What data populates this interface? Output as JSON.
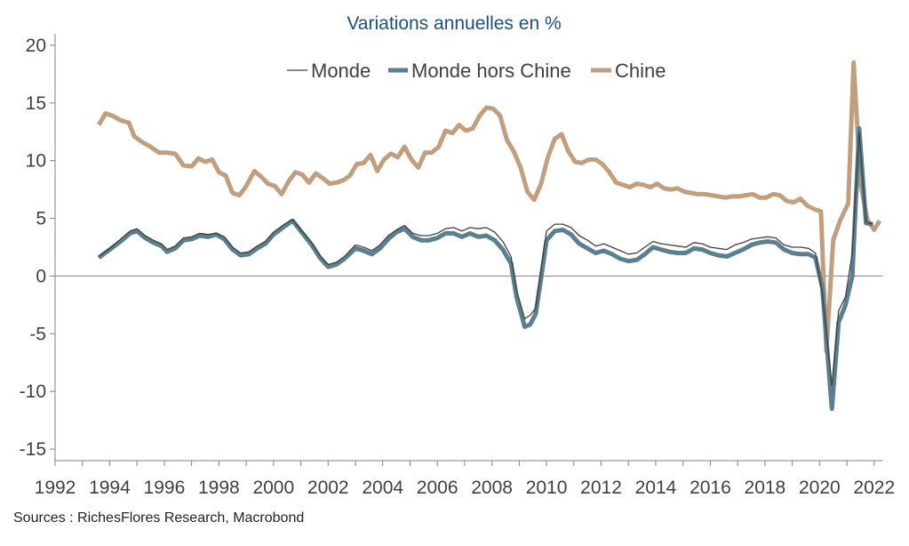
{
  "chart_data": {
    "type": "line",
    "title": "Variations annuelles en %",
    "xlabel": "",
    "ylabel": "",
    "xlim": [
      1992,
      2022.3
    ],
    "ylim": [
      -16,
      21
    ],
    "x_ticks": [
      "1992",
      "1994",
      "1996",
      "1998",
      "2000",
      "2002",
      "2004",
      "2006",
      "2008",
      "2010",
      "2012",
      "2014",
      "2016",
      "2018",
      "2020",
      "2022"
    ],
    "y_ticks": [
      "20",
      "15",
      "10",
      "5",
      "0",
      "-5",
      "-10",
      "-15"
    ],
    "legend_position": "top",
    "grid": false,
    "series": [
      {
        "name": "Monde",
        "color": "#404040",
        "points": [
          [
            1993.6,
            1.7
          ],
          [
            1994.0,
            2.4
          ],
          [
            1994.4,
            3.2
          ],
          [
            1994.75,
            3.9
          ],
          [
            1995.0,
            4.1
          ],
          [
            1995.3,
            3.5
          ],
          [
            1995.6,
            3.1
          ],
          [
            1995.9,
            2.8
          ],
          [
            1996.1,
            2.3
          ],
          [
            1996.4,
            2.6
          ],
          [
            1996.7,
            3.3
          ],
          [
            1997.0,
            3.4
          ],
          [
            1997.3,
            3.7
          ],
          [
            1997.6,
            3.6
          ],
          [
            1997.9,
            3.7
          ],
          [
            1998.2,
            3.4
          ],
          [
            1998.5,
            2.5
          ],
          [
            1998.8,
            2.0
          ],
          [
            1999.1,
            2.1
          ],
          [
            1999.4,
            2.6
          ],
          [
            1999.7,
            3.0
          ],
          [
            2000.0,
            3.8
          ],
          [
            2000.4,
            4.5
          ],
          [
            2000.7,
            4.9
          ],
          [
            2001.0,
            4.0
          ],
          [
            2001.4,
            2.9
          ],
          [
            2001.7,
            1.8
          ],
          [
            2002.0,
            1.0
          ],
          [
            2002.3,
            1.2
          ],
          [
            2002.6,
            1.7
          ],
          [
            2003.0,
            2.7
          ],
          [
            2003.3,
            2.5
          ],
          [
            2003.6,
            2.2
          ],
          [
            2003.9,
            2.7
          ],
          [
            2004.2,
            3.5
          ],
          [
            2004.5,
            4.0
          ],
          [
            2004.8,
            4.4
          ],
          [
            2005.1,
            3.7
          ],
          [
            2005.4,
            3.5
          ],
          [
            2005.7,
            3.5
          ],
          [
            2006.0,
            3.7
          ],
          [
            2006.3,
            4.1
          ],
          [
            2006.6,
            4.2
          ],
          [
            2006.9,
            3.9
          ],
          [
            2007.2,
            4.2
          ],
          [
            2007.5,
            4.1
          ],
          [
            2007.8,
            4.2
          ],
          [
            2008.1,
            3.8
          ],
          [
            2008.4,
            3.0
          ],
          [
            2008.7,
            1.7
          ],
          [
            2008.9,
            -1.2
          ],
          [
            2009.2,
            -3.7
          ],
          [
            2009.4,
            -3.4
          ],
          [
            2009.6,
            -2.8
          ],
          [
            2009.8,
            0.6
          ],
          [
            2010.0,
            3.9
          ],
          [
            2010.3,
            4.5
          ],
          [
            2010.6,
            4.5
          ],
          [
            2010.9,
            4.2
          ],
          [
            2011.2,
            3.5
          ],
          [
            2011.5,
            3.1
          ],
          [
            2011.8,
            2.6
          ],
          [
            2012.1,
            2.8
          ],
          [
            2012.4,
            2.5
          ],
          [
            2012.7,
            2.2
          ],
          [
            2013.0,
            1.9
          ],
          [
            2013.3,
            2.0
          ],
          [
            2013.6,
            2.5
          ],
          [
            2013.9,
            3.0
          ],
          [
            2014.2,
            2.8
          ],
          [
            2014.5,
            2.7
          ],
          [
            2014.8,
            2.6
          ],
          [
            2015.1,
            2.5
          ],
          [
            2015.4,
            2.9
          ],
          [
            2015.7,
            2.8
          ],
          [
            2016.0,
            2.5
          ],
          [
            2016.3,
            2.4
          ],
          [
            2016.6,
            2.3
          ],
          [
            2016.9,
            2.7
          ],
          [
            2017.2,
            2.9
          ],
          [
            2017.5,
            3.2
          ],
          [
            2017.8,
            3.3
          ],
          [
            2018.1,
            3.4
          ],
          [
            2018.4,
            3.3
          ],
          [
            2018.7,
            2.7
          ],
          [
            2019.0,
            2.5
          ],
          [
            2019.3,
            2.5
          ],
          [
            2019.6,
            2.4
          ],
          [
            2019.85,
            2.0
          ],
          [
            2020.1,
            -1.5
          ],
          [
            2020.45,
            -9.5
          ],
          [
            2020.7,
            -3.0
          ],
          [
            2020.95,
            -1.8
          ],
          [
            2021.2,
            2.0
          ],
          [
            2021.45,
            12.5
          ],
          [
            2021.7,
            4.7
          ],
          [
            2021.95,
            4.5
          ]
        ]
      },
      {
        "name": "Monde hors Chine",
        "color": "#5a7f8e",
        "points": [
          [
            1993.6,
            1.6
          ],
          [
            1994.0,
            2.3
          ],
          [
            1994.4,
            3.0
          ],
          [
            1994.75,
            3.7
          ],
          [
            1995.0,
            3.9
          ],
          [
            1995.3,
            3.3
          ],
          [
            1995.6,
            2.9
          ],
          [
            1995.9,
            2.6
          ],
          [
            1996.1,
            2.1
          ],
          [
            1996.4,
            2.4
          ],
          [
            1996.7,
            3.1
          ],
          [
            1997.0,
            3.2
          ],
          [
            1997.3,
            3.5
          ],
          [
            1997.6,
            3.4
          ],
          [
            1997.9,
            3.6
          ],
          [
            1998.2,
            3.2
          ],
          [
            1998.5,
            2.3
          ],
          [
            1998.8,
            1.8
          ],
          [
            1999.1,
            1.9
          ],
          [
            1999.4,
            2.4
          ],
          [
            1999.7,
            2.8
          ],
          [
            2000.0,
            3.6
          ],
          [
            2000.4,
            4.3
          ],
          [
            2000.7,
            4.8
          ],
          [
            2001.0,
            3.9
          ],
          [
            2001.4,
            2.7
          ],
          [
            2001.7,
            1.6
          ],
          [
            2002.0,
            0.8
          ],
          [
            2002.3,
            1.0
          ],
          [
            2002.6,
            1.5
          ],
          [
            2003.0,
            2.4
          ],
          [
            2003.3,
            2.2
          ],
          [
            2003.6,
            1.9
          ],
          [
            2003.9,
            2.4
          ],
          [
            2004.2,
            3.2
          ],
          [
            2004.5,
            3.8
          ],
          [
            2004.8,
            4.1
          ],
          [
            2005.1,
            3.4
          ],
          [
            2005.4,
            3.1
          ],
          [
            2005.7,
            3.1
          ],
          [
            2006.0,
            3.3
          ],
          [
            2006.3,
            3.7
          ],
          [
            2006.6,
            3.7
          ],
          [
            2006.9,
            3.4
          ],
          [
            2007.2,
            3.7
          ],
          [
            2007.5,
            3.4
          ],
          [
            2007.8,
            3.5
          ],
          [
            2008.1,
            3.1
          ],
          [
            2008.4,
            2.3
          ],
          [
            2008.7,
            1.1
          ],
          [
            2008.9,
            -1.8
          ],
          [
            2009.2,
            -4.4
          ],
          [
            2009.4,
            -4.2
          ],
          [
            2009.6,
            -3.3
          ],
          [
            2009.8,
            -0.2
          ],
          [
            2010.0,
            3.1
          ],
          [
            2010.3,
            3.9
          ],
          [
            2010.6,
            4.0
          ],
          [
            2010.9,
            3.6
          ],
          [
            2011.2,
            2.8
          ],
          [
            2011.5,
            2.4
          ],
          [
            2011.8,
            2.0
          ],
          [
            2012.1,
            2.2
          ],
          [
            2012.4,
            1.9
          ],
          [
            2012.7,
            1.5
          ],
          [
            2013.0,
            1.3
          ],
          [
            2013.3,
            1.4
          ],
          [
            2013.6,
            1.9
          ],
          [
            2013.9,
            2.5
          ],
          [
            2014.2,
            2.3
          ],
          [
            2014.5,
            2.1
          ],
          [
            2014.8,
            2.0
          ],
          [
            2015.1,
            2.0
          ],
          [
            2015.4,
            2.4
          ],
          [
            2015.7,
            2.3
          ],
          [
            2016.0,
            2.0
          ],
          [
            2016.3,
            1.8
          ],
          [
            2016.6,
            1.7
          ],
          [
            2016.9,
            2.0
          ],
          [
            2017.2,
            2.3
          ],
          [
            2017.5,
            2.7
          ],
          [
            2017.8,
            2.9
          ],
          [
            2018.1,
            3.0
          ],
          [
            2018.4,
            2.9
          ],
          [
            2018.7,
            2.3
          ],
          [
            2019.0,
            2.0
          ],
          [
            2019.3,
            1.9
          ],
          [
            2019.6,
            1.9
          ],
          [
            2019.85,
            1.6
          ],
          [
            2020.1,
            -1.0
          ],
          [
            2020.45,
            -11.5
          ],
          [
            2020.7,
            -4.0
          ],
          [
            2020.95,
            -2.5
          ],
          [
            2021.2,
            0.0
          ],
          [
            2021.45,
            12.8
          ],
          [
            2021.7,
            4.6
          ],
          [
            2021.95,
            4.5
          ]
        ]
      },
      {
        "name": "Chine",
        "color": "#c19f7e",
        "points": [
          [
            1993.6,
            13.1
          ],
          [
            1993.85,
            14.1
          ],
          [
            1994.1,
            13.9
          ],
          [
            1994.4,
            13.5
          ],
          [
            1994.7,
            13.3
          ],
          [
            1994.9,
            12.1
          ],
          [
            1995.2,
            11.6
          ],
          [
            1995.5,
            11.2
          ],
          [
            1995.8,
            10.7
          ],
          [
            1996.1,
            10.7
          ],
          [
            1996.4,
            10.6
          ],
          [
            1996.7,
            9.6
          ],
          [
            1997.0,
            9.5
          ],
          [
            1997.25,
            10.2
          ],
          [
            1997.5,
            9.9
          ],
          [
            1997.75,
            10.1
          ],
          [
            1998.0,
            9.0
          ],
          [
            1998.25,
            8.7
          ],
          [
            1998.5,
            7.2
          ],
          [
            1998.75,
            7.0
          ],
          [
            1999.0,
            7.8
          ],
          [
            1999.3,
            9.1
          ],
          [
            1999.55,
            8.6
          ],
          [
            1999.8,
            8.0
          ],
          [
            2000.05,
            7.8
          ],
          [
            2000.3,
            7.1
          ],
          [
            2000.55,
            8.2
          ],
          [
            2000.8,
            9.0
          ],
          [
            2001.05,
            8.8
          ],
          [
            2001.3,
            8.1
          ],
          [
            2001.55,
            8.9
          ],
          [
            2001.8,
            8.5
          ],
          [
            2002.05,
            8.0
          ],
          [
            2002.3,
            8.1
          ],
          [
            2002.55,
            8.3
          ],
          [
            2002.8,
            8.7
          ],
          [
            2003.05,
            9.7
          ],
          [
            2003.3,
            9.8
          ],
          [
            2003.55,
            10.5
          ],
          [
            2003.8,
            9.1
          ],
          [
            2004.05,
            10.1
          ],
          [
            2004.3,
            10.6
          ],
          [
            2004.55,
            10.3
          ],
          [
            2004.8,
            11.2
          ],
          [
            2005.05,
            10.1
          ],
          [
            2005.3,
            9.4
          ],
          [
            2005.55,
            10.7
          ],
          [
            2005.8,
            10.7
          ],
          [
            2006.05,
            11.2
          ],
          [
            2006.3,
            12.6
          ],
          [
            2006.55,
            12.4
          ],
          [
            2006.8,
            13.1
          ],
          [
            2007.05,
            12.6
          ],
          [
            2007.3,
            12.8
          ],
          [
            2007.55,
            13.9
          ],
          [
            2007.8,
            14.6
          ],
          [
            2008.05,
            14.5
          ],
          [
            2008.3,
            13.9
          ],
          [
            2008.55,
            11.8
          ],
          [
            2008.8,
            10.8
          ],
          [
            2009.05,
            9.4
          ],
          [
            2009.3,
            7.3
          ],
          [
            2009.55,
            6.6
          ],
          [
            2009.8,
            8.0
          ],
          [
            2010.05,
            10.3
          ],
          [
            2010.3,
            11.9
          ],
          [
            2010.55,
            12.3
          ],
          [
            2010.8,
            10.8
          ],
          [
            2011.05,
            9.9
          ],
          [
            2011.3,
            9.8
          ],
          [
            2011.55,
            10.1
          ],
          [
            2011.8,
            10.1
          ],
          [
            2012.05,
            9.7
          ],
          [
            2012.3,
            9.0
          ],
          [
            2012.55,
            8.1
          ],
          [
            2012.8,
            7.9
          ],
          [
            2013.05,
            7.7
          ],
          [
            2013.3,
            8.0
          ],
          [
            2013.55,
            7.9
          ],
          [
            2013.8,
            7.7
          ],
          [
            2014.05,
            8.0
          ],
          [
            2014.3,
            7.6
          ],
          [
            2014.55,
            7.5
          ],
          [
            2014.8,
            7.6
          ],
          [
            2015.05,
            7.3
          ],
          [
            2015.3,
            7.2
          ],
          [
            2015.55,
            7.1
          ],
          [
            2015.8,
            7.1
          ],
          [
            2016.05,
            7.0
          ],
          [
            2016.3,
            6.9
          ],
          [
            2016.55,
            6.8
          ],
          [
            2016.8,
            6.9
          ],
          [
            2017.05,
            6.9
          ],
          [
            2017.3,
            7.0
          ],
          [
            2017.55,
            7.1
          ],
          [
            2017.8,
            6.8
          ],
          [
            2018.05,
            6.8
          ],
          [
            2018.3,
            7.1
          ],
          [
            2018.55,
            7.0
          ],
          [
            2018.8,
            6.5
          ],
          [
            2019.05,
            6.4
          ],
          [
            2019.3,
            6.7
          ],
          [
            2019.55,
            6.1
          ],
          [
            2019.8,
            5.8
          ],
          [
            2020.05,
            5.6
          ],
          [
            2020.25,
            -6.5
          ],
          [
            2020.5,
            3.1
          ],
          [
            2020.75,
            4.8
          ],
          [
            2021.05,
            6.3
          ],
          [
            2021.25,
            18.5
          ],
          [
            2021.5,
            8.0
          ],
          [
            2021.75,
            4.9
          ],
          [
            2022.0,
            4.0
          ],
          [
            2022.2,
            4.8
          ]
        ]
      }
    ]
  },
  "source": "Sources : RichesFlores Research, Macrobond"
}
